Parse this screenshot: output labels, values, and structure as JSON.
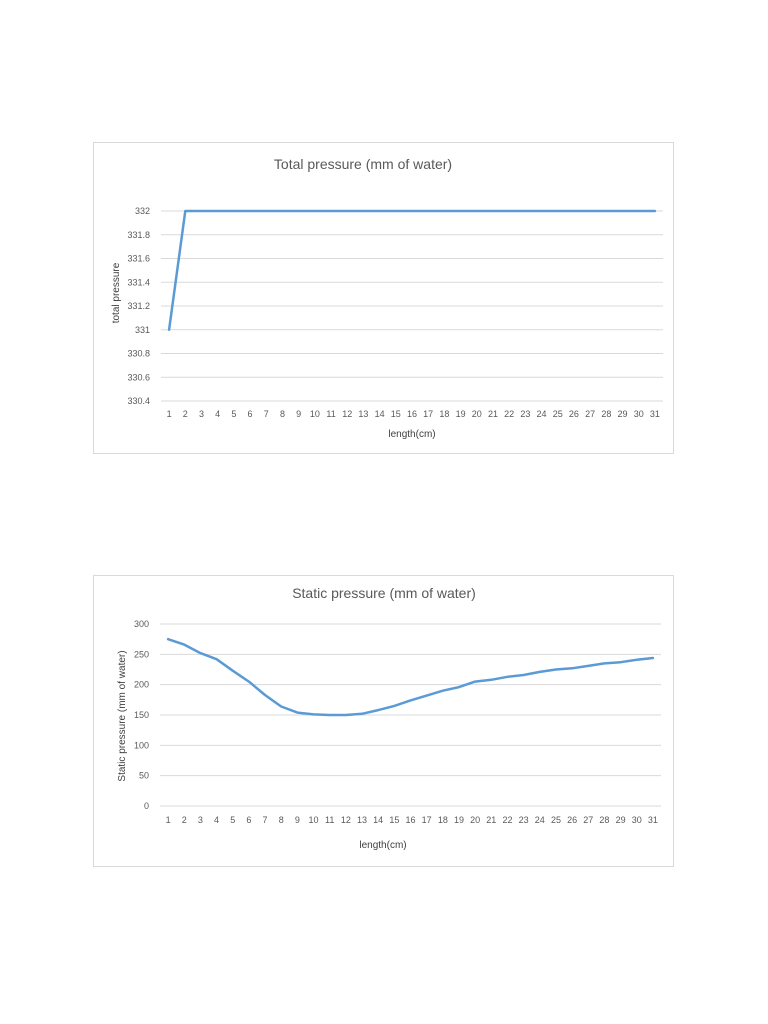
{
  "chart_data": [
    {
      "type": "line",
      "title": "Total pressure (mm of water)",
      "xlabel": "length(cm)",
      "ylabel": "total pressure",
      "categories": [
        "1",
        "2",
        "3",
        "4",
        "5",
        "6",
        "7",
        "8",
        "9",
        "10",
        "11",
        "12",
        "13",
        "14",
        "15",
        "16",
        "17",
        "18",
        "19",
        "20",
        "21",
        "22",
        "23",
        "24",
        "25",
        "26",
        "27",
        "28",
        "29",
        "30",
        "31"
      ],
      "ylim": [
        330.4,
        332
      ],
      "yticks": [
        "332",
        "331.8",
        "331.6",
        "331.4",
        "331.2",
        "331",
        "330.8",
        "330.6",
        "330.4"
      ],
      "grid": true,
      "legend": "none",
      "series": [
        {
          "color": "#5b9bd5",
          "values": [
            331,
            332,
            332,
            332,
            332,
            332,
            332,
            332,
            332,
            332,
            332,
            332,
            332,
            332,
            332,
            332,
            332,
            332,
            332,
            332,
            332,
            332,
            332,
            332,
            332,
            332,
            332,
            332,
            332,
            332,
            332
          ]
        }
      ]
    },
    {
      "type": "line",
      "title": "Static pressure (mm  of water)",
      "xlabel": "length(cm)",
      "ylabel": "Static pressure (mm of water)",
      "categories": [
        "1",
        "2",
        "3",
        "4",
        "5",
        "6",
        "7",
        "8",
        "9",
        "10",
        "11",
        "12",
        "13",
        "14",
        "15",
        "16",
        "17",
        "18",
        "19",
        "20",
        "21",
        "22",
        "23",
        "24",
        "25",
        "26",
        "27",
        "28",
        "29",
        "30",
        "31"
      ],
      "ylim": [
        0,
        300
      ],
      "yticks": [
        "300",
        "250",
        "200",
        "150",
        "100",
        "50",
        "0"
      ],
      "grid": true,
      "legend": "none",
      "series": [
        {
          "color": "#5b9bd5",
          "values": [
            275,
            266,
            252,
            242,
            223,
            205,
            183,
            164,
            154,
            151,
            150,
            150,
            152,
            158,
            165,
            174,
            182,
            190,
            196,
            205,
            208,
            213,
            216,
            221,
            225,
            227,
            231,
            235,
            237,
            241,
            244
          ]
        }
      ]
    }
  ]
}
